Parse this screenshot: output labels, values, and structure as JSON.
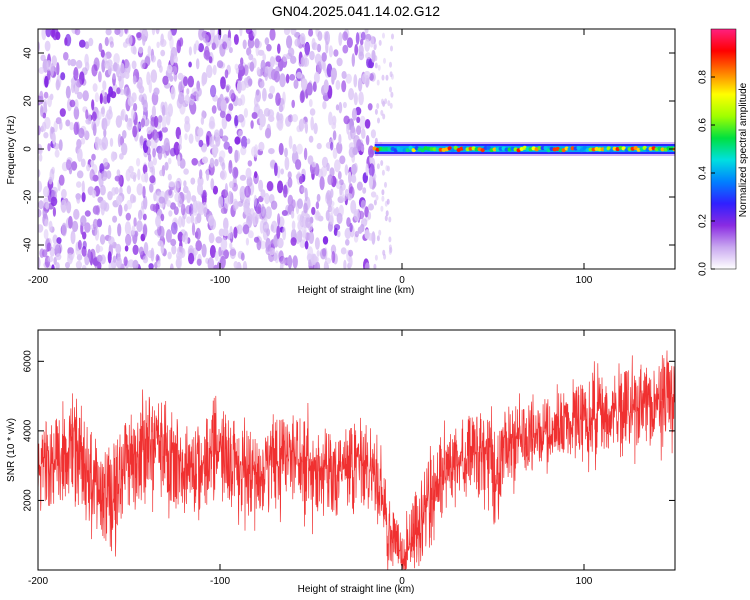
{
  "title": "GN04.2025.041.14.02.G12",
  "chart_data": [
    {
      "type": "heatmap",
      "xlabel": "Height of straight line (km)",
      "ylabel": "Frequency (Hz)",
      "xlim": [
        -200,
        150
      ],
      "ylim": [
        -50,
        50
      ],
      "x_ticks": [
        -200,
        -100,
        0,
        100
      ],
      "y_ticks": [
        -40,
        -20,
        0,
        20,
        40
      ],
      "colorbar": {
        "label": "Normalized spectral amplitude",
        "range": [
          0,
          1
        ],
        "ticks": [
          "0.0",
          "0.2",
          "0.4",
          "0.6",
          "0.8"
        ],
        "colors": [
          "#ffffff",
          "#c9a8f0",
          "#8a2be2",
          "#3020ff",
          "#0080ff",
          "#00e0e0",
          "#00e040",
          "#a0ff00",
          "#ffff00",
          "#ff8000",
          "#ff0000",
          "#ff2080"
        ]
      },
      "regions": [
        {
          "x_range": [
            -200,
            -15
          ],
          "pattern": "broadband noise",
          "amplitude_range": [
            0.05,
            0.2
          ]
        },
        {
          "x_range": [
            -15,
            150
          ],
          "pattern": "narrow line near 0 Hz",
          "frequency_center": 0,
          "amplitude_range": [
            0.3,
            0.9
          ]
        }
      ]
    },
    {
      "type": "line",
      "xlabel": "Height of straight line (km)",
      "ylabel": "SNR (10 * v/v)",
      "xlim": [
        -200,
        150
      ],
      "ylim": [
        0,
        6900
      ],
      "x_ticks": [
        -200,
        -100,
        0,
        100
      ],
      "y_ticks": [
        2000,
        4000,
        6000
      ],
      "series": [
        {
          "color": "#f03030",
          "envelope": [
            {
              "x": -200,
              "low": 1500,
              "mid": 2900,
              "high": 4200
            },
            {
              "x": -190,
              "low": 1800,
              "mid": 3200,
              "high": 4500
            },
            {
              "x": -180,
              "low": 2000,
              "mid": 3500,
              "high": 4700
            },
            {
              "x": -170,
              "low": 1300,
              "mid": 2600,
              "high": 4000
            },
            {
              "x": -160,
              "low": 500,
              "mid": 2000,
              "high": 3500
            },
            {
              "x": -150,
              "low": 1500,
              "mid": 3000,
              "high": 4400
            },
            {
              "x": -140,
              "low": 2200,
              "mid": 3700,
              "high": 5000
            },
            {
              "x": -130,
              "low": 2000,
              "mid": 3500,
              "high": 4800
            },
            {
              "x": -120,
              "low": 1500,
              "mid": 2900,
              "high": 4200
            },
            {
              "x": -110,
              "low": 1600,
              "mid": 3000,
              "high": 4200
            },
            {
              "x": -100,
              "low": 2000,
              "mid": 3400,
              "high": 4800
            },
            {
              "x": -90,
              "low": 1700,
              "mid": 3100,
              "high": 4300
            },
            {
              "x": -80,
              "low": 1400,
              "mid": 2700,
              "high": 3900
            },
            {
              "x": -70,
              "low": 1700,
              "mid": 3000,
              "high": 4300
            },
            {
              "x": -60,
              "low": 2000,
              "mid": 3300,
              "high": 4500
            },
            {
              "x": -50,
              "low": 1600,
              "mid": 3000,
              "high": 4300
            },
            {
              "x": -40,
              "low": 1500,
              "mid": 2800,
              "high": 4100
            },
            {
              "x": -30,
              "low": 1600,
              "mid": 2900,
              "high": 4200
            },
            {
              "x": -20,
              "low": 1800,
              "mid": 3100,
              "high": 4500
            },
            {
              "x": -12,
              "low": 1200,
              "mid": 2400,
              "high": 3800
            },
            {
              "x": -8,
              "low": 200,
              "mid": 1200,
              "high": 2600
            },
            {
              "x": -3,
              "low": 0,
              "mid": 600,
              "high": 1500
            },
            {
              "x": 0,
              "low": 0,
              "mid": 300,
              "high": 1200
            },
            {
              "x": 5,
              "low": 0,
              "mid": 800,
              "high": 2200
            },
            {
              "x": 10,
              "low": 100,
              "mid": 1200,
              "high": 2500
            },
            {
              "x": 15,
              "low": 800,
              "mid": 2000,
              "high": 3200
            },
            {
              "x": 20,
              "low": 1400,
              "mid": 2600,
              "high": 3800
            },
            {
              "x": 30,
              "low": 1800,
              "mid": 3000,
              "high": 4200
            },
            {
              "x": 40,
              "low": 2200,
              "mid": 3400,
              "high": 4600
            },
            {
              "x": 48,
              "low": 2000,
              "mid": 3300,
              "high": 4400
            },
            {
              "x": 52,
              "low": 700,
              "mid": 2200,
              "high": 3800
            },
            {
              "x": 56,
              "low": 2500,
              "mid": 3700,
              "high": 4700
            },
            {
              "x": 65,
              "low": 2700,
              "mid": 3800,
              "high": 4800
            },
            {
              "x": 75,
              "low": 2900,
              "mid": 3900,
              "high": 4900
            },
            {
              "x": 85,
              "low": 3100,
              "mid": 4000,
              "high": 5100
            },
            {
              "x": 95,
              "low": 3200,
              "mid": 4200,
              "high": 5300
            },
            {
              "x": 105,
              "low": 3300,
              "mid": 4400,
              "high": 5500
            },
            {
              "x": 115,
              "low": 3400,
              "mid": 4500,
              "high": 5600
            },
            {
              "x": 125,
              "low": 3500,
              "mid": 4600,
              "high": 5800
            },
            {
              "x": 135,
              "low": 3600,
              "mid": 4800,
              "high": 6000
            },
            {
              "x": 142,
              "low": 3700,
              "mid": 4900,
              "high": 6500
            },
            {
              "x": 150,
              "low": 3800,
              "mid": 5000,
              "high": 6000
            }
          ]
        }
      ]
    }
  ]
}
